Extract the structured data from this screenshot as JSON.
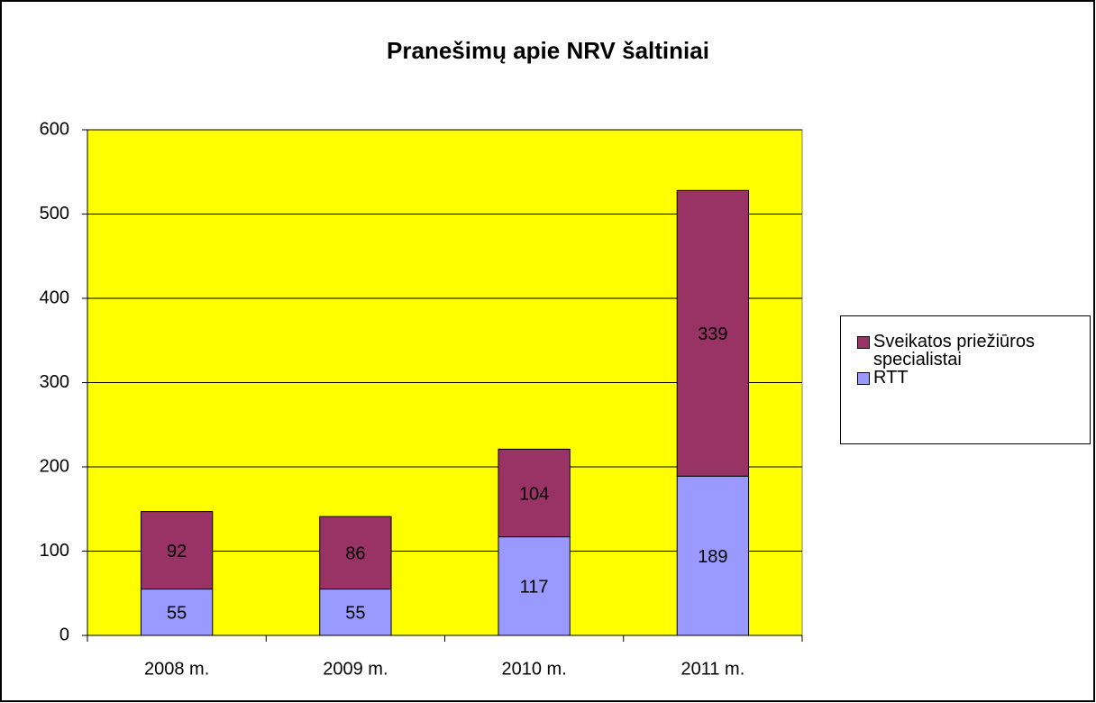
{
  "chart_data": {
    "type": "stacked_bar",
    "title": "Pranešimų apie NRV šaltiniai",
    "categories": [
      "2008 m.",
      "2009 m.",
      "2010 m.",
      "2011 m."
    ],
    "series": [
      {
        "name": "RTT",
        "color": "#9999ff",
        "values": [
          55,
          55,
          117,
          189
        ]
      },
      {
        "name": "Sveikatos priežiūros specialistai",
        "color": "#993366",
        "values": [
          92,
          86,
          104,
          339
        ]
      }
    ],
    "ylim": [
      0,
      600
    ],
    "yticks": [
      0,
      100,
      200,
      300,
      400,
      500,
      600
    ],
    "grid": true,
    "plot_background": "#ffff00",
    "legend": "right"
  }
}
